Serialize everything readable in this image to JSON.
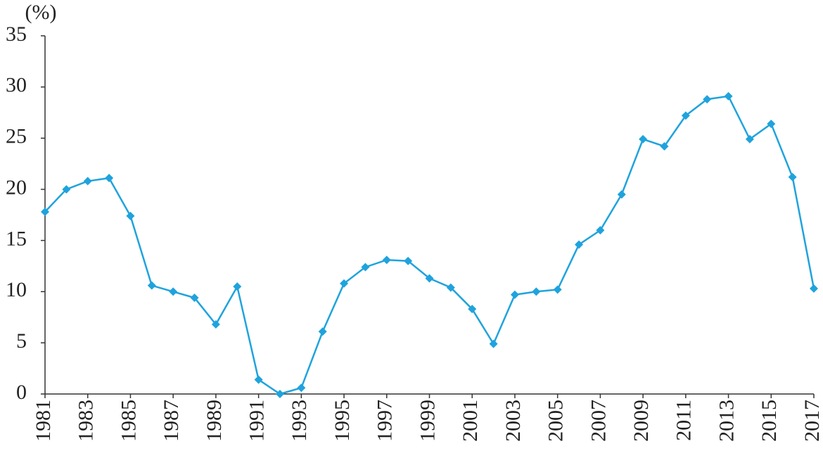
{
  "chart_data": {
    "type": "line",
    "y_label": "(%)",
    "x": [
      1981,
      1982,
      1983,
      1984,
      1985,
      1986,
      1987,
      1988,
      1989,
      1990,
      1991,
      1992,
      1993,
      1994,
      1995,
      1996,
      1997,
      1998,
      1999,
      2000,
      2001,
      2002,
      2003,
      2004,
      2005,
      2006,
      2007,
      2008,
      2009,
      2010,
      2011,
      2012,
      2013,
      2014,
      2015,
      2016,
      2017
    ],
    "series": [
      {
        "color": "#1fa3dd",
        "values": [
          17.8,
          20.0,
          20.8,
          21.1,
          17.4,
          10.6,
          10.0,
          9.4,
          6.8,
          10.5,
          1.4,
          0.0,
          0.6,
          6.1,
          10.8,
          12.4,
          13.1,
          13.0,
          11.3,
          10.4,
          8.3,
          4.9,
          9.7,
          10.0,
          10.2,
          14.6,
          16.0,
          19.5,
          24.9,
          24.2,
          27.2,
          28.8,
          29.1,
          24.9,
          26.4,
          21.2,
          10.3
        ]
      }
    ],
    "xlim": [
      1981,
      2017
    ],
    "xticks": [
      1981,
      1983,
      1985,
      1987,
      1989,
      1991,
      1993,
      1995,
      1997,
      1999,
      2001,
      2003,
      2005,
      2007,
      2009,
      2011,
      2013,
      2015,
      2017
    ],
    "ylim": [
      0,
      35
    ],
    "yticks": [
      0,
      5,
      10,
      15,
      20,
      25,
      30,
      35
    ]
  }
}
